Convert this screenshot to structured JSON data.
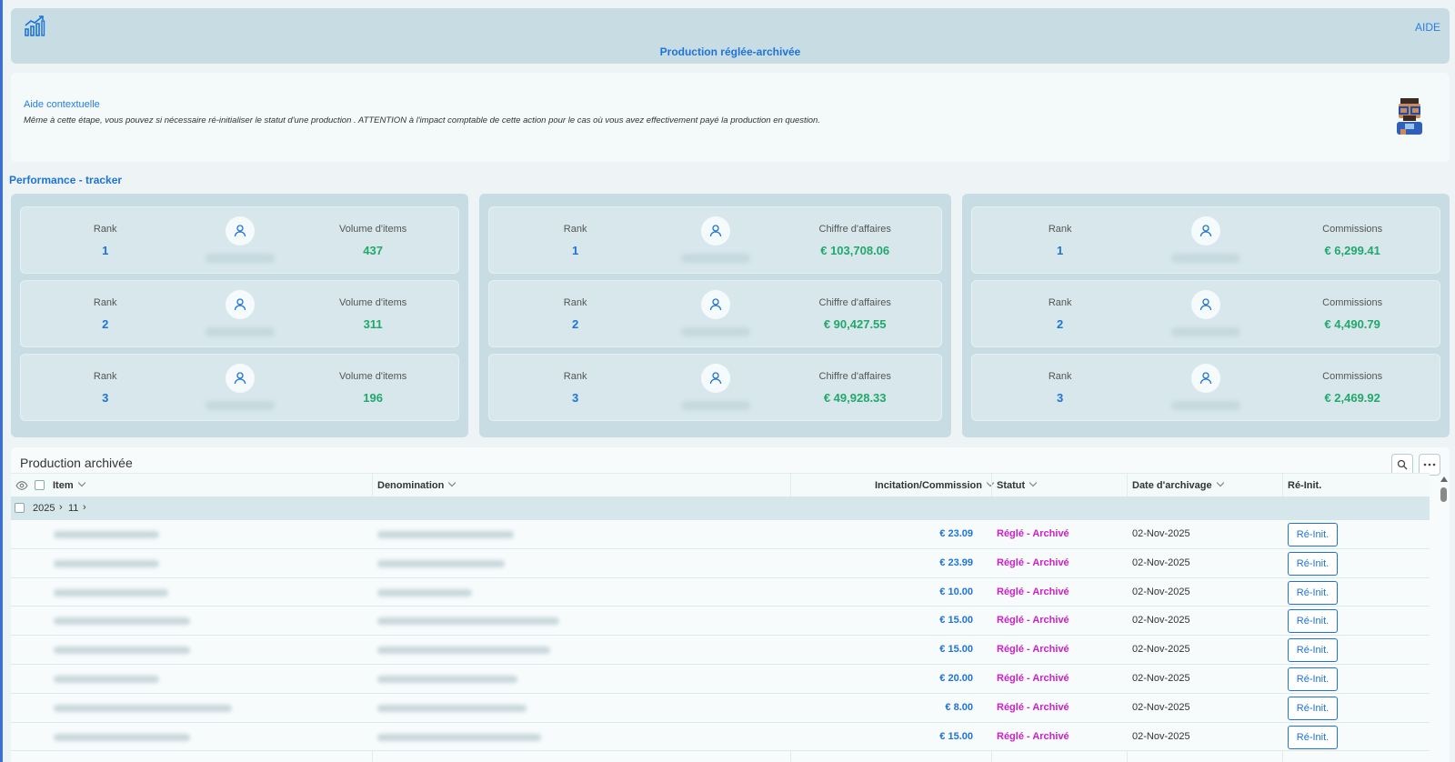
{
  "header": {
    "title": "Production réglée-archivée",
    "help_link": "AIDE"
  },
  "help": {
    "title": "Aide contextuelle",
    "text": "Même à cette étape, vous pouvez si nécessaire ré-initialiser le statut d'une production . ATTENTION à l'impact comptable de cette action pour le cas où vous avez effectivement payé la production en question."
  },
  "tracker": {
    "title": "Performance - tracker",
    "rank_label": "Rank",
    "panels": [
      {
        "metric_label": "Volume d'items",
        "cards": [
          {
            "rank": "1",
            "value": "437"
          },
          {
            "rank": "2",
            "value": "311"
          },
          {
            "rank": "3",
            "value": "196"
          }
        ]
      },
      {
        "metric_label": "Chiffre d'affaires",
        "cards": [
          {
            "rank": "1",
            "value": "€ 103,708.06"
          },
          {
            "rank": "2",
            "value": "€ 90,427.55"
          },
          {
            "rank": "3",
            "value": "€ 49,928.33"
          }
        ]
      },
      {
        "metric_label": "Commissions",
        "cards": [
          {
            "rank": "1",
            "value": "€ 6,299.41"
          },
          {
            "rank": "2",
            "value": "€ 4,490.79"
          },
          {
            "rank": "3",
            "value": "€ 2,469.92"
          }
        ]
      }
    ]
  },
  "table": {
    "title": "Production archivée",
    "columns": {
      "item": "Item",
      "denomination": "Denomination",
      "incitation": "Incitation/Commission",
      "statut": "Statut",
      "date": "Date d'archivage",
      "reinit": "Ré-Init."
    },
    "group": {
      "year": "2025",
      "sep1": "›",
      "month": "11",
      "sep2": "›"
    },
    "reinit_label": "Ré-Init.",
    "rows": [
      {
        "amount": "€ 23.09",
        "statut": "Réglé - Archivé",
        "date": "02-Nov-2025"
      },
      {
        "amount": "€ 23.99",
        "statut": "Réglé - Archivé",
        "date": "02-Nov-2025"
      },
      {
        "amount": "€ 10.00",
        "statut": "Réglé - Archivé",
        "date": "02-Nov-2025"
      },
      {
        "amount": "€ 15.00",
        "statut": "Réglé - Archivé",
        "date": "02-Nov-2025"
      },
      {
        "amount": "€ 15.00",
        "statut": "Réglé - Archivé",
        "date": "02-Nov-2025"
      },
      {
        "amount": "€ 20.00",
        "statut": "Réglé - Archivé",
        "date": "02-Nov-2025"
      },
      {
        "amount": "€ 8.00",
        "statut": "Réglé - Archivé",
        "date": "02-Nov-2025"
      },
      {
        "amount": "€ 15.00",
        "statut": "Réglé - Archivé",
        "date": "02-Nov-2025"
      }
    ]
  },
  "icons": {
    "logo": "bar-chart-trend-icon",
    "user": "user-icon",
    "search": "search-icon",
    "more": "more-icon",
    "eye": "eye-icon"
  },
  "colors": {
    "accent": "#1e73d6",
    "value_green": "#21a86a",
    "status_magenta": "#cc1fc9",
    "header_bg": "#c8dde3"
  }
}
